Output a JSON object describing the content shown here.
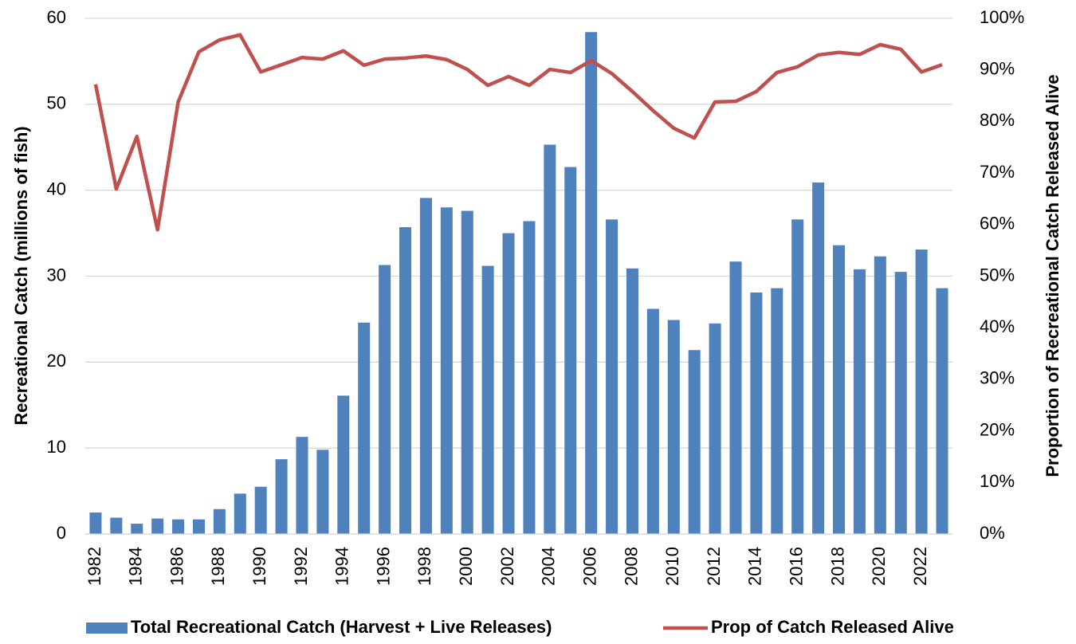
{
  "chart_data": {
    "type": "bar-line",
    "categories": [
      "1982",
      null,
      "1984",
      null,
      "1986",
      null,
      "1988",
      null,
      "1990",
      null,
      "1992",
      null,
      "1994",
      null,
      "1996",
      null,
      "1998",
      null,
      "2000",
      null,
      "2002",
      null,
      "2004",
      null,
      "2006",
      null,
      "2008",
      null,
      "2010",
      null,
      "2012",
      null,
      "2014",
      null,
      "2016",
      null,
      "2018",
      null,
      "2020",
      null,
      "2022",
      null
    ],
    "y_label": "Recreational Catch (millions of fish)",
    "y2_label": "Proportion of Recreational Catch Released Alive",
    "ylim": [
      0,
      60
    ],
    "yticks": [
      0,
      10,
      20,
      30,
      40,
      50,
      60
    ],
    "y2lim": [
      0,
      100
    ],
    "y2ticks": [
      {
        "value": 0,
        "label": "0%"
      },
      {
        "value": 10,
        "label": "10%"
      },
      {
        "value": 20,
        "label": "20%"
      },
      {
        "value": 30,
        "label": "30%"
      },
      {
        "value": 40,
        "label": "40%"
      },
      {
        "value": 50,
        "label": "50%"
      },
      {
        "value": 60,
        "label": "60%"
      },
      {
        "value": 70,
        "label": "70%"
      },
      {
        "value": 80,
        "label": "80%"
      },
      {
        "value": 90,
        "label": "90%"
      },
      {
        "value": 100,
        "label": "100%"
      }
    ],
    "grid": true,
    "legend": "bottom",
    "series": [
      {
        "name": "Total Recreational Catch (Harvest + Live Releases)",
        "type": "bar",
        "color": "#4f81bd",
        "values": [
          2.5,
          1.9,
          1.2,
          1.8,
          1.7,
          1.7,
          2.9,
          4.7,
          5.5,
          8.7,
          11.3,
          9.8,
          16.1,
          24.6,
          31.3,
          35.7,
          39.1,
          38.0,
          37.6,
          31.2,
          35.0,
          36.4,
          45.3,
          42.7,
          58.4,
          36.6,
          30.9,
          26.2,
          24.9,
          21.4,
          24.5,
          31.7,
          28.1,
          28.6,
          36.6,
          40.9,
          33.6,
          30.8,
          32.3,
          30.5,
          33.1,
          28.6
        ]
      },
      {
        "name": "Prop of Catch Released Alive",
        "type": "line",
        "axis": "y2",
        "color": "#c0504d",
        "values": [
          87.2,
          66.9,
          77.1,
          59.0,
          83.8,
          93.5,
          95.8,
          96.8,
          89.6,
          91.0,
          92.4,
          92.1,
          93.7,
          90.9,
          92.1,
          92.3,
          92.7,
          92.0,
          90.1,
          87.0,
          88.7,
          87.0,
          90.1,
          89.5,
          91.8,
          89.3,
          85.8,
          82.1,
          78.7,
          76.8,
          83.8,
          83.9,
          85.8,
          89.5,
          90.6,
          92.9,
          93.4,
          93.0,
          94.9,
          94.0,
          89.6,
          91.0
        ]
      }
    ]
  }
}
